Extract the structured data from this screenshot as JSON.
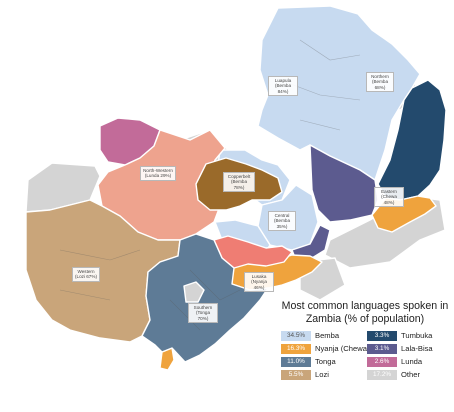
{
  "title": "Most common languages spoken in Zambia (% of population)",
  "legend": [
    {
      "value": "34.5%",
      "name": "Bemba",
      "color": "#c7daf0",
      "text_color": "#555555"
    },
    {
      "value": "16.3%",
      "name": "Nyanja (Chewa)",
      "color": "#efa33d",
      "text_color": "#ffffff"
    },
    {
      "value": "11.0%",
      "name": "Tonga",
      "color": "#5e7b96",
      "text_color": "#ffffff"
    },
    {
      "value": "5.5%",
      "name": "Lozi",
      "color": "#c9a57a",
      "text_color": "#ffffff"
    },
    {
      "value": "3.3%",
      "name": "Tumbuka",
      "color": "#234a6d",
      "text_color": "#ffffff"
    },
    {
      "value": "3.1%",
      "name": "Lala-Bisa",
      "color": "#5c5b8f",
      "text_color": "#ffffff"
    },
    {
      "value": "2.6%",
      "name": "Lunda",
      "color": "#c26b99",
      "text_color": "#ffffff"
    },
    {
      "value": "17.2%",
      "name": "Other",
      "color": "#d4d4d4",
      "text_color": "#ffffff"
    }
  ],
  "province_labels": [
    {
      "line1": "Luapula",
      "line2": "(Bemba 84%)"
    },
    {
      "line1": "Northern",
      "line2": "(Bemba 68%)"
    },
    {
      "line1": "North-Western",
      "line2": "(Lunda 29%)"
    },
    {
      "line1": "Copperbelt",
      "line2": "(Bemba 78%)"
    },
    {
      "line1": "Central",
      "line2": "(Bemba 35%)"
    },
    {
      "line1": "Eastern",
      "line2": "(Chewa 48%)"
    },
    {
      "line1": "Western",
      "line2": "(Lozi 67%)"
    },
    {
      "line1": "Lusaka",
      "line2": "(Nyanja 46%)"
    },
    {
      "line1": "Southern",
      "line2": "(Tonga 70%)"
    }
  ]
}
